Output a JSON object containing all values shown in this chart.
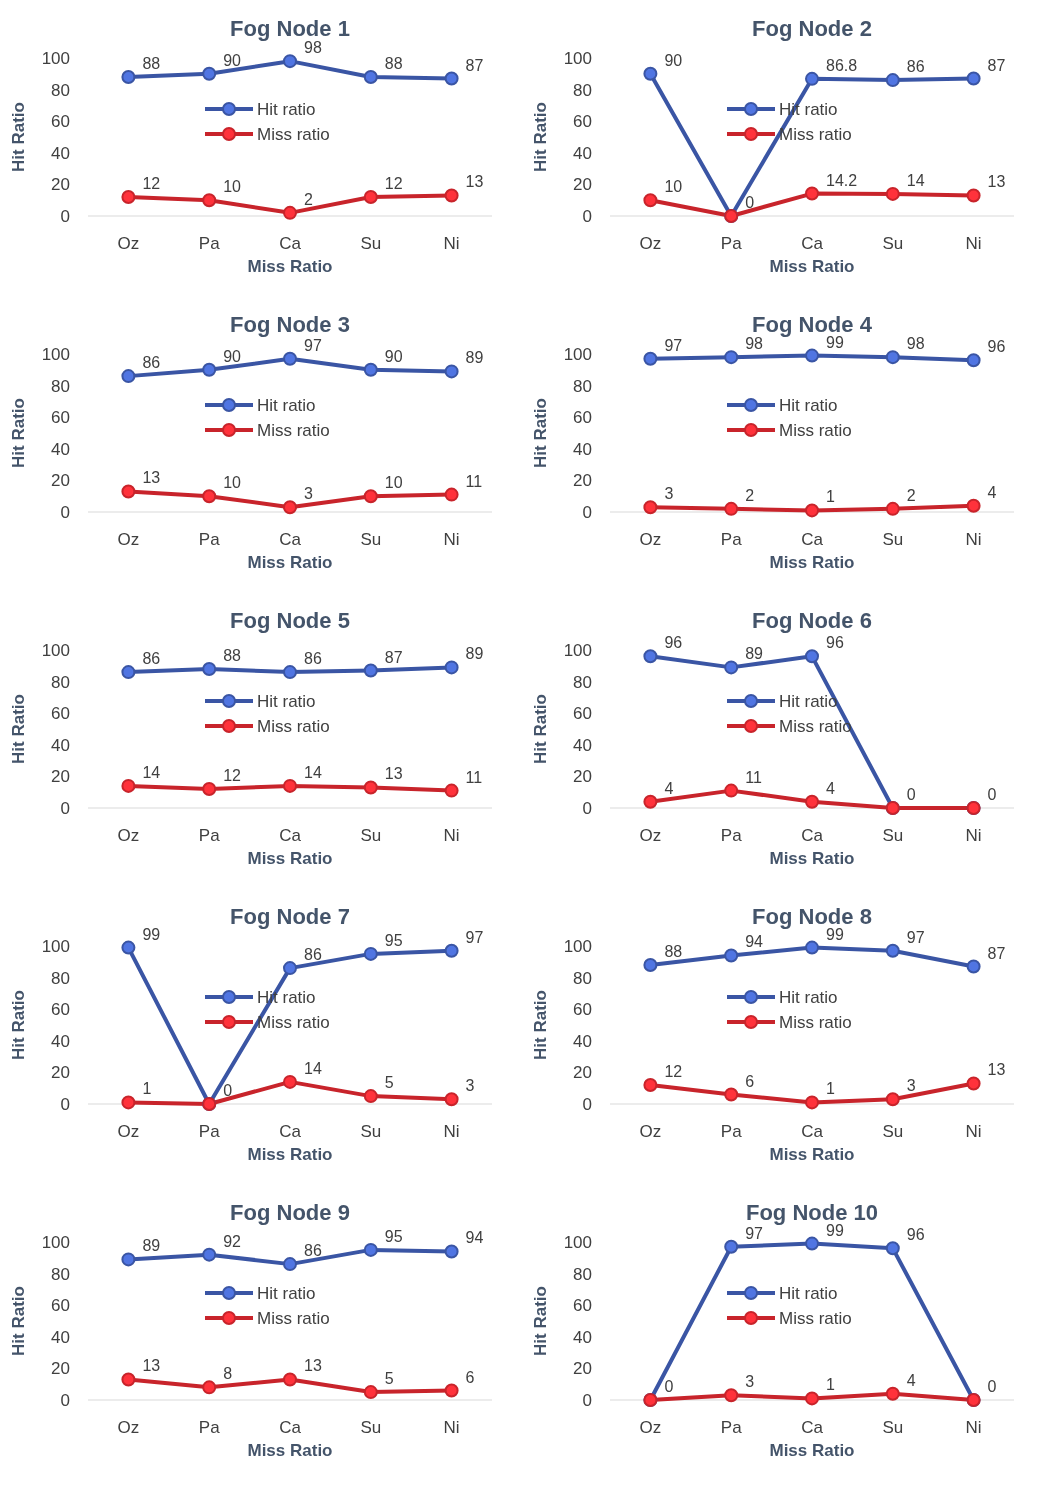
{
  "chart_data": [
    {
      "type": "line",
      "title": "Fog Node 1",
      "xlabel": "Miss Ratio",
      "ylabel": "Hit Ratio",
      "categories": [
        "Oz",
        "Pa",
        "Ca",
        "Su",
        "Ni"
      ],
      "ylim": [
        0,
        100
      ],
      "yticks": [
        0,
        20,
        40,
        60,
        80,
        100
      ],
      "grid": false,
      "legend": "center",
      "marker": "circle",
      "data_labels": true,
      "series": [
        {
          "name": "Hit ratio",
          "color": "#3a55a4",
          "values": [
            88,
            90,
            98,
            88,
            87
          ]
        },
        {
          "name": "Miss ratio",
          "color": "#c8242b",
          "values": [
            12,
            10,
            2,
            12,
            13
          ]
        }
      ]
    },
    {
      "type": "line",
      "title": "Fog Node 2",
      "xlabel": "Miss Ratio",
      "ylabel": "Hit Ratio",
      "categories": [
        "Oz",
        "Pa",
        "Ca",
        "Su",
        "Ni"
      ],
      "ylim": [
        0,
        100
      ],
      "yticks": [
        0,
        20,
        40,
        60,
        80,
        100
      ],
      "grid": false,
      "legend": "center",
      "marker": "circle",
      "data_labels": true,
      "series": [
        {
          "name": "Hit ratio",
          "color": "#3a55a4",
          "values": [
            90,
            0,
            86.8,
            86,
            87
          ]
        },
        {
          "name": "Miss ratio",
          "color": "#c8242b",
          "values": [
            10,
            0,
            14.2,
            14,
            13
          ],
          "value_labels": [
            "10",
            null,
            "14.2",
            "14",
            "13"
          ]
        }
      ]
    },
    {
      "type": "line",
      "title": "Fog Node 3",
      "xlabel": "Miss Ratio",
      "ylabel": "Hit Ratio",
      "categories": [
        "Oz",
        "Pa",
        "Ca",
        "Su",
        "Ni"
      ],
      "ylim": [
        0,
        100
      ],
      "yticks": [
        0,
        20,
        40,
        60,
        80,
        100
      ],
      "grid": false,
      "legend": "center",
      "marker": "circle",
      "data_labels": true,
      "series": [
        {
          "name": "Hit ratio",
          "color": "#3a55a4",
          "values": [
            86,
            90,
            97,
            90,
            89
          ]
        },
        {
          "name": "Miss ratio",
          "color": "#c8242b",
          "values": [
            13,
            10,
            3,
            10,
            11
          ]
        }
      ]
    },
    {
      "type": "line",
      "title": "Fog Node 4",
      "xlabel": "Miss Ratio",
      "ylabel": "Hit Ratio",
      "categories": [
        "Oz",
        "Pa",
        "Ca",
        "Su",
        "Ni"
      ],
      "ylim": [
        0,
        100
      ],
      "yticks": [
        0,
        20,
        40,
        60,
        80,
        100
      ],
      "grid": false,
      "legend": "center",
      "marker": "circle",
      "data_labels": true,
      "series": [
        {
          "name": "Hit ratio",
          "color": "#3a55a4",
          "values": [
            97,
            98,
            99,
            98,
            96
          ]
        },
        {
          "name": "Miss ratio",
          "color": "#c8242b",
          "values": [
            3,
            2,
            1,
            2,
            4
          ]
        }
      ]
    },
    {
      "type": "line",
      "title": "Fog Node 5",
      "xlabel": "Miss Ratio",
      "ylabel": "Hit Ratio",
      "categories": [
        "Oz",
        "Pa",
        "Ca",
        "Su",
        "Ni"
      ],
      "ylim": [
        0,
        100
      ],
      "yticks": [
        0,
        20,
        40,
        60,
        80,
        100
      ],
      "grid": false,
      "legend": "center",
      "marker": "circle",
      "data_labels": true,
      "series": [
        {
          "name": "Hit ratio",
          "color": "#3a55a4",
          "values": [
            86,
            88,
            86,
            87,
            89
          ]
        },
        {
          "name": "Miss ratio",
          "color": "#c8242b",
          "values": [
            14,
            12,
            14,
            13,
            11
          ]
        }
      ]
    },
    {
      "type": "line",
      "title": "Fog Node 6",
      "xlabel": "Miss Ratio",
      "ylabel": "Hit Ratio",
      "categories": [
        "Oz",
        "Pa",
        "Ca",
        "Su",
        "Ni"
      ],
      "ylim": [
        0,
        100
      ],
      "yticks": [
        0,
        20,
        40,
        60,
        80,
        100
      ],
      "grid": false,
      "legend": "center",
      "marker": "circle",
      "data_labels": true,
      "series": [
        {
          "name": "Hit ratio",
          "color": "#3a55a4",
          "values": [
            96,
            89,
            96,
            0,
            0
          ]
        },
        {
          "name": "Miss ratio",
          "color": "#c8242b",
          "values": [
            4,
            11,
            4,
            0,
            0
          ],
          "value_labels": [
            "4",
            "11",
            "4",
            null,
            null
          ]
        }
      ]
    },
    {
      "type": "line",
      "title": "Fog Node 7",
      "xlabel": "Miss Ratio",
      "ylabel": "Hit Ratio",
      "categories": [
        "Oz",
        "Pa",
        "Ca",
        "Su",
        "Ni"
      ],
      "ylim": [
        0,
        100
      ],
      "yticks": [
        0,
        20,
        40,
        60,
        80,
        100
      ],
      "grid": false,
      "legend": "center",
      "marker": "circle",
      "data_labels": true,
      "series": [
        {
          "name": "Hit ratio",
          "color": "#3a55a4",
          "values": [
            99,
            0,
            86,
            95,
            97
          ]
        },
        {
          "name": "Miss ratio",
          "color": "#c8242b",
          "values": [
            1,
            0,
            14,
            5,
            3
          ],
          "value_labels": [
            "1",
            null,
            "14",
            "5",
            "3"
          ]
        }
      ]
    },
    {
      "type": "line",
      "title": "Fog Node 8",
      "xlabel": "Miss Ratio",
      "ylabel": "Hit Ratio",
      "categories": [
        "Oz",
        "Pa",
        "Ca",
        "Su",
        "Ni"
      ],
      "ylim": [
        0,
        100
      ],
      "yticks": [
        0,
        20,
        40,
        60,
        80,
        100
      ],
      "grid": false,
      "legend": "center",
      "marker": "circle",
      "data_labels": true,
      "series": [
        {
          "name": "Hit ratio",
          "color": "#3a55a4",
          "values": [
            88,
            94,
            99,
            97,
            87
          ]
        },
        {
          "name": "Miss ratio",
          "color": "#c8242b",
          "values": [
            12,
            6,
            1,
            3,
            13
          ]
        }
      ]
    },
    {
      "type": "line",
      "title": "Fog Node 9",
      "xlabel": "Miss Ratio",
      "ylabel": "Hit Ratio",
      "categories": [
        "Oz",
        "Pa",
        "Ca",
        "Su",
        "Ni"
      ],
      "ylim": [
        0,
        100
      ],
      "yticks": [
        0,
        20,
        40,
        60,
        80,
        100
      ],
      "grid": false,
      "legend": "center",
      "marker": "circle",
      "data_labels": true,
      "series": [
        {
          "name": "Hit ratio",
          "color": "#3a55a4",
          "values": [
            89,
            92,
            86,
            95,
            94
          ]
        },
        {
          "name": "Miss ratio",
          "color": "#c8242b",
          "values": [
            13,
            8,
            13,
            5,
            6
          ]
        }
      ]
    },
    {
      "type": "line",
      "title": "Fog Node 10",
      "xlabel": "Miss Ratio",
      "ylabel": "Hit Ratio",
      "categories": [
        "Oz",
        "Pa",
        "Ca",
        "Su",
        "Ni"
      ],
      "ylim": [
        0,
        100
      ],
      "yticks": [
        0,
        20,
        40,
        60,
        80,
        100
      ],
      "grid": false,
      "legend": "center",
      "marker": "circle",
      "data_labels": true,
      "series": [
        {
          "name": "Hit ratio",
          "color": "#3a55a4",
          "values": [
            0,
            97,
            99,
            96,
            0
          ]
        },
        {
          "name": "Miss ratio",
          "color": "#c8242b",
          "values": [
            0,
            3,
            1,
            4,
            0
          ],
          "value_labels": [
            null,
            "3",
            "1",
            "4",
            null
          ]
        }
      ]
    }
  ]
}
